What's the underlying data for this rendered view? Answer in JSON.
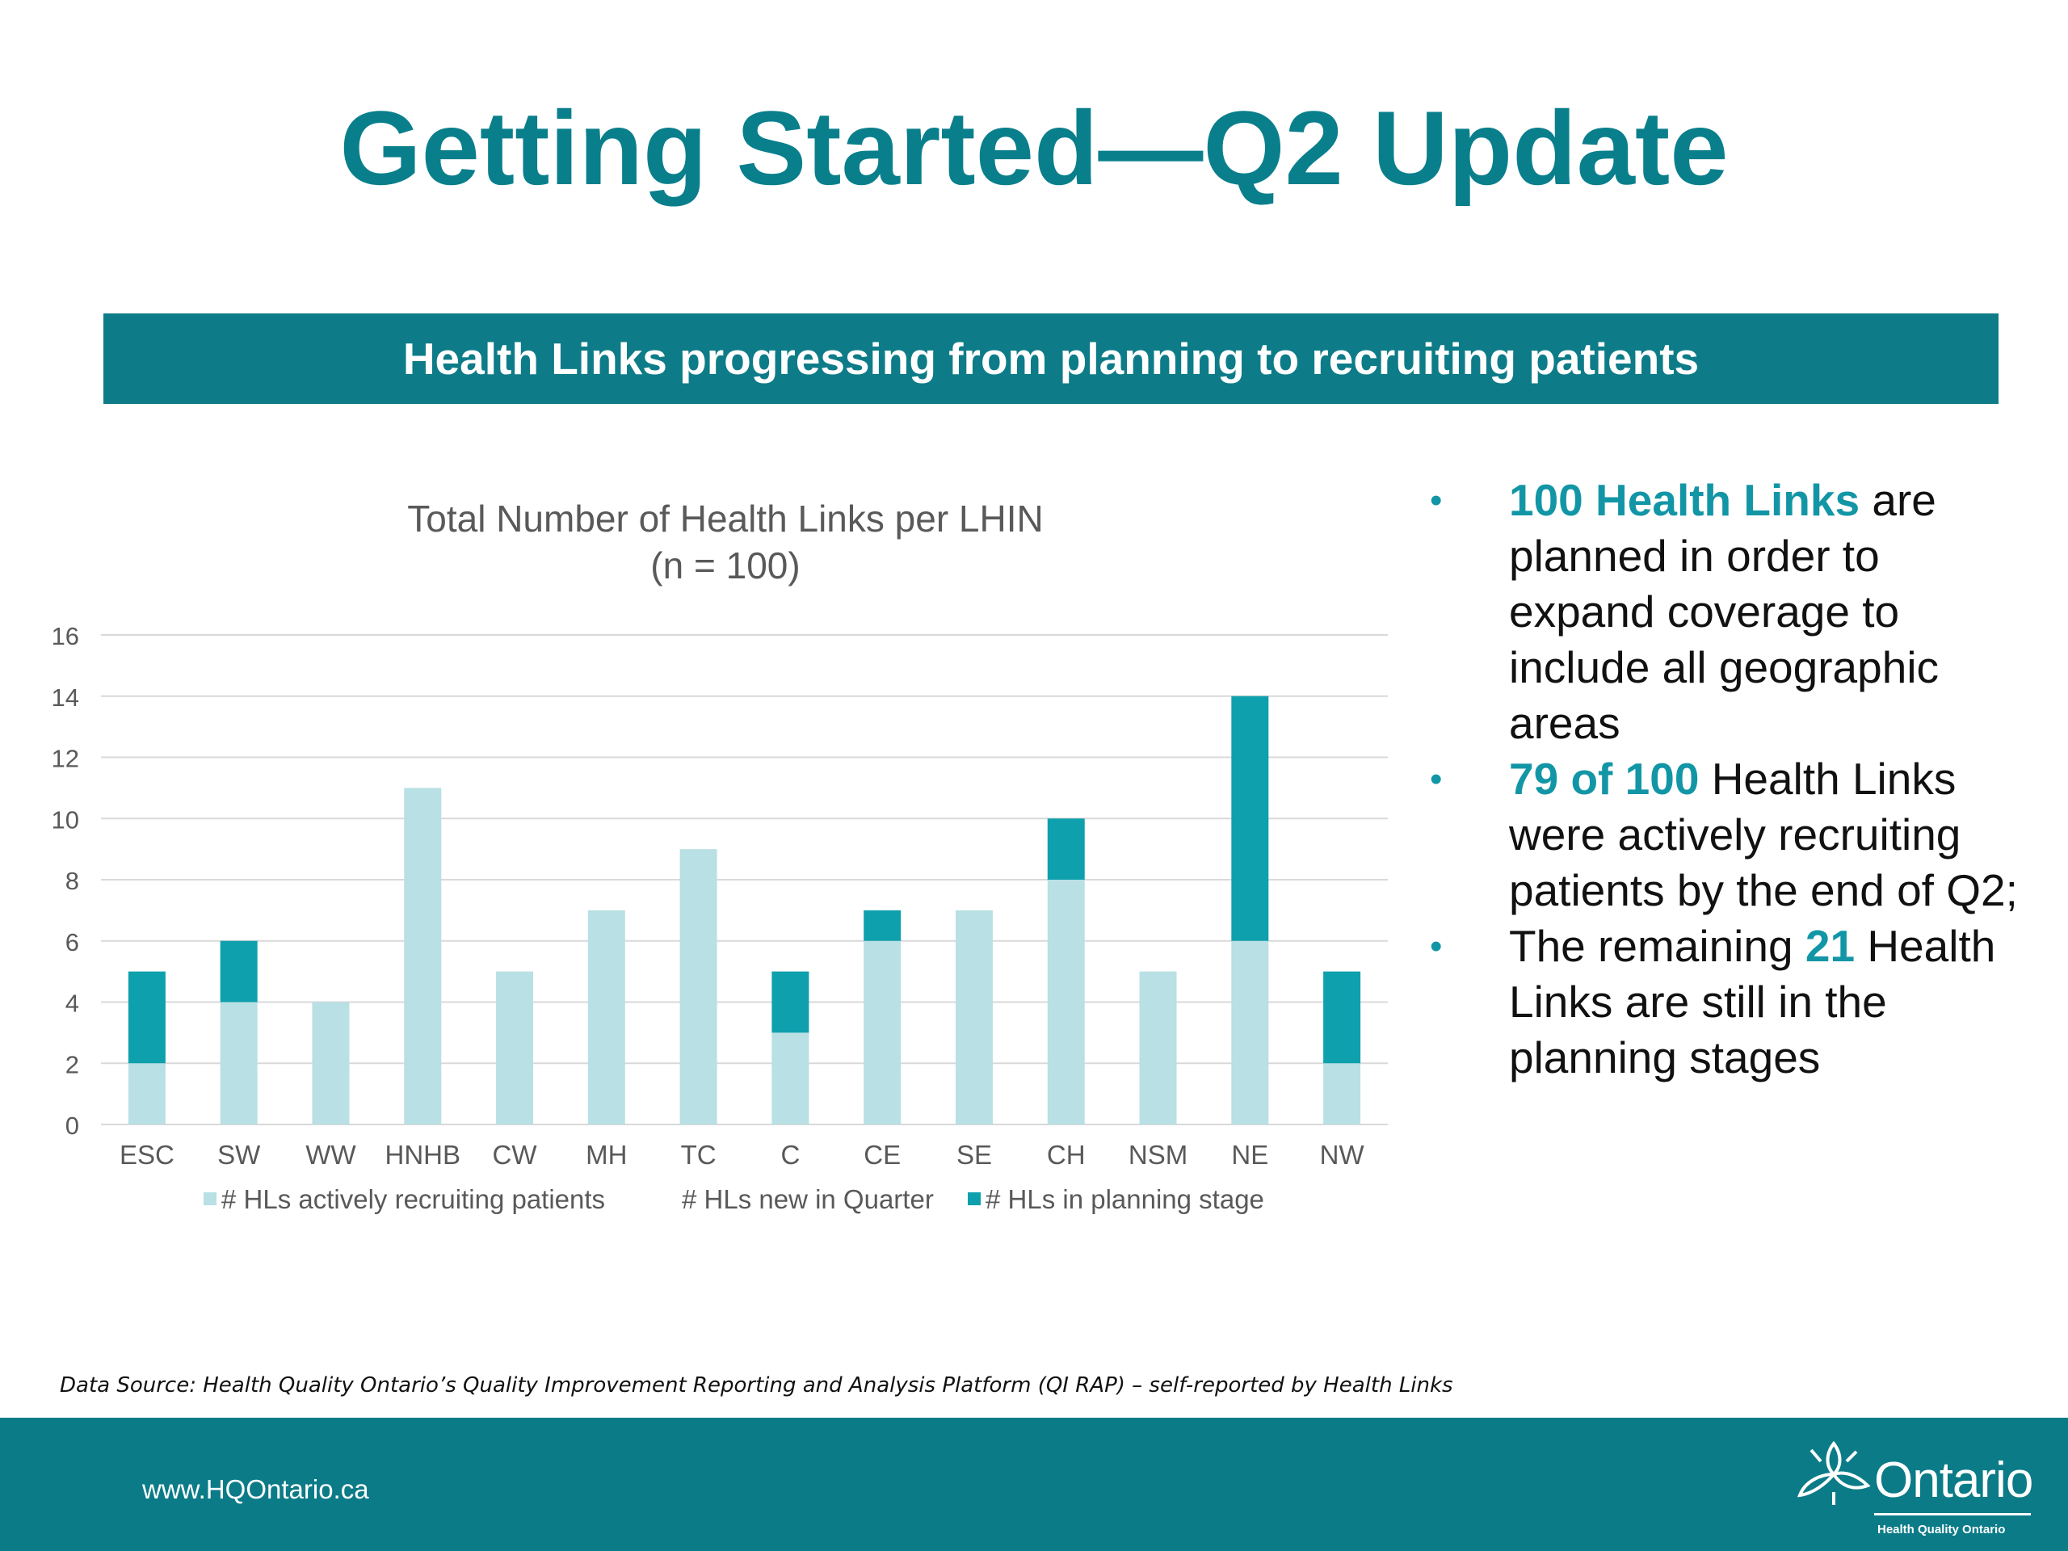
{
  "title": "Getting Started—Q2 Update",
  "banner": "Health Links progressing from planning to recruiting patients",
  "chart_data": {
    "type": "bar",
    "stacked": true,
    "title": "Total Number of Health Links per LHIN",
    "subtitle": "(n = 100)",
    "categories": [
      "ESC",
      "SW",
      "WW",
      "HNHB",
      "CW",
      "MH",
      "TC",
      "C",
      "CE",
      "SE",
      "CH",
      "NSM",
      "NE",
      "NW"
    ],
    "series": [
      {
        "name": "# HLs actively recruiting patients",
        "color": "#b9e0e4",
        "values": [
          2,
          4,
          4,
          11,
          5,
          7,
          9,
          3,
          6,
          7,
          8,
          5,
          6,
          2
        ]
      },
      {
        "name": "# HLs new in Quarter",
        "color": "#ffffff",
        "values": [
          0,
          0,
          0,
          0,
          0,
          0,
          0,
          0,
          0,
          0,
          0,
          0,
          0,
          0
        ]
      },
      {
        "name": "# HLs in planning stage",
        "color": "#0ea0ad",
        "values": [
          3,
          2,
          0,
          0,
          0,
          0,
          0,
          2,
          1,
          0,
          2,
          0,
          8,
          3
        ]
      }
    ],
    "ylim": [
      0,
      16
    ],
    "yticks": [
      0,
      2,
      4,
      6,
      8,
      10,
      12,
      14,
      16
    ],
    "grid": true,
    "legend": "bottom"
  },
  "bullets": [
    {
      "highlight": "100 Health Links",
      "text": " are planned in order to expand coverage to include all geographic areas"
    },
    {
      "highlight": "79 of 100",
      "text": " Health Links were actively recruiting patients by the end of Q2;"
    },
    {
      "prefix": "The remaining ",
      "highlight": "21",
      "text": " Health Links are still in the planning stages"
    }
  ],
  "bullet_glyph": "•",
  "data_source": "Data Source:  Health Quality Ontario’s Quality Improvement Reporting and Analysis Platform (QI RAP) – self-reported by Health Links",
  "footer": {
    "url": "www.HQOntario.ca",
    "logo_word": "Ontario",
    "logo_sub": "Health Quality Ontario"
  },
  "colors": {
    "brand_teal": "#0b7b88",
    "highlight": "#1296a6"
  }
}
